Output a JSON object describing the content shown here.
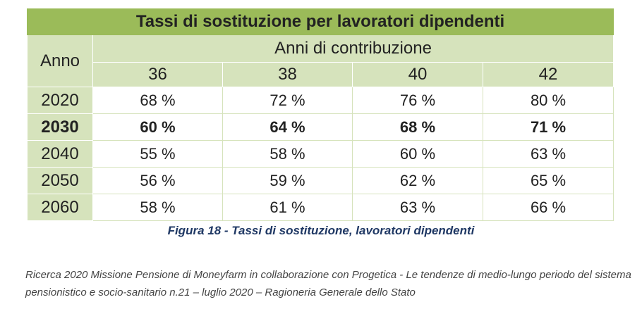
{
  "table": {
    "title": "Tassi di sostituzione per lavoratori dipendenti",
    "row_header": "Anno",
    "group_header": "Anni di contribuzione",
    "columns": [
      "36",
      "38",
      "40",
      "42"
    ],
    "rows": [
      {
        "year": "2020",
        "values": [
          "68 %",
          "72 %",
          "76 %",
          "80 %"
        ],
        "bold": false
      },
      {
        "year": "2030",
        "values": [
          "60 %",
          "64 %",
          "68 %",
          "71 %"
        ],
        "bold": true
      },
      {
        "year": "2040",
        "values": [
          "55 %",
          "58 %",
          "60 %",
          "63 %"
        ],
        "bold": false
      },
      {
        "year": "2050",
        "values": [
          "56 %",
          "59 %",
          "62 %",
          "65 %"
        ],
        "bold": false
      },
      {
        "year": "2060",
        "values": [
          "58 %",
          "61 %",
          "63 %",
          "66 %"
        ],
        "bold": false
      }
    ]
  },
  "caption": "Figura 18 - Tassi di sostituzione, lavoratori dipendenti",
  "source": "Ricerca 2020 Missione Pensione di Moneyfarm in collaborazione con Progetica  - Le tendenze di medio-lungo periodo del sistema pensionistico e socio-sanitario n.21 – luglio 2020 – Ragioneria Generale dello Stato",
  "colors": {
    "title_bg": "#9bbb59",
    "header_bg": "#d6e3bc",
    "caption_text": "#1f3864"
  }
}
